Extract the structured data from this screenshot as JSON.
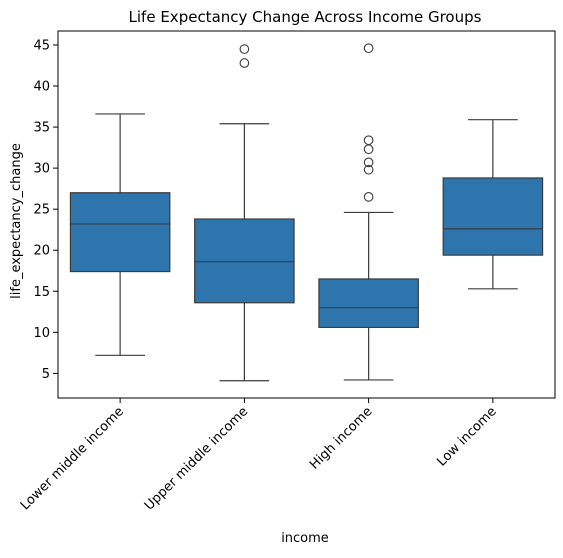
{
  "chart_data": {
    "type": "box",
    "title": "Life Expectancy Change Across Income Groups",
    "xlabel": "income",
    "ylabel": "life_expectancy_change",
    "ylim": [
      2.0,
      46.7
    ],
    "yticks": [
      5,
      10,
      15,
      20,
      25,
      30,
      35,
      40,
      45
    ],
    "categories": [
      "Lower middle income",
      "Upper middle income",
      "High income",
      "Low income"
    ],
    "boxes": [
      {
        "category": "Lower middle income",
        "whisker_low": 7.2,
        "q1": 17.4,
        "median": 23.2,
        "q3": 27.0,
        "whisker_high": 36.6,
        "outliers": []
      },
      {
        "category": "Upper middle income",
        "whisker_low": 4.1,
        "q1": 13.6,
        "median": 18.6,
        "q3": 23.8,
        "whisker_high": 35.4,
        "outliers": [
          42.8,
          44.5
        ]
      },
      {
        "category": "High income",
        "whisker_low": 4.2,
        "q1": 10.6,
        "median": 13.0,
        "q3": 16.5,
        "whisker_high": 24.6,
        "outliers": [
          26.5,
          29.8,
          30.7,
          32.3,
          33.4,
          44.6
        ]
      },
      {
        "category": "Low income",
        "whisker_low": 15.3,
        "q1": 19.4,
        "median": 22.6,
        "q3": 28.8,
        "whisker_high": 35.9,
        "outliers": []
      }
    ],
    "grid": false,
    "colors": {
      "box_fill": "#2e75ae",
      "lines": "#3b3b3b",
      "axes": "#000000"
    }
  }
}
